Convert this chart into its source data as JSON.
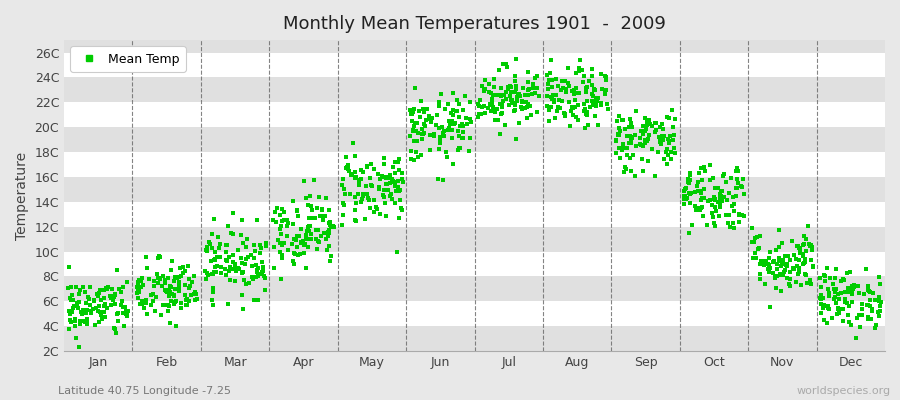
{
  "title": "Monthly Mean Temperatures 1901  -  2009",
  "ylabel": "Temperature",
  "subtitle": "Latitude 40.75 Longitude -7.25",
  "watermark": "worldspecies.org",
  "legend_label": "Mean Temp",
  "dot_color": "#00cc00",
  "dot_size": 5,
  "fig_bg_color": "#e8e8e8",
  "band_colors": [
    "#ffffff",
    "#e0e0e0"
  ],
  "months": [
    "Jan",
    "Feb",
    "Mar",
    "Apr",
    "May",
    "Jun",
    "Jul",
    "Aug",
    "Sep",
    "Oct",
    "Nov",
    "Dec"
  ],
  "yticks": [
    2,
    4,
    6,
    8,
    10,
    12,
    14,
    16,
    18,
    20,
    22,
    24,
    26
  ],
  "ytick_labels": [
    "2C",
    "4C",
    "6C",
    "8C",
    "10C",
    "12C",
    "14C",
    "16C",
    "18C",
    "20C",
    "22C",
    "24C",
    "26C"
  ],
  "ylim": [
    2,
    27
  ],
  "mean_temps": [
    5.5,
    6.8,
    9.2,
    11.8,
    15.2,
    19.8,
    22.5,
    22.3,
    19.0,
    14.5,
    9.2,
    6.2
  ],
  "std_temps": [
    1.2,
    1.3,
    1.4,
    1.5,
    1.5,
    1.4,
    1.2,
    1.2,
    1.3,
    1.4,
    1.3,
    1.2
  ],
  "n_years": 109,
  "seed": 42
}
